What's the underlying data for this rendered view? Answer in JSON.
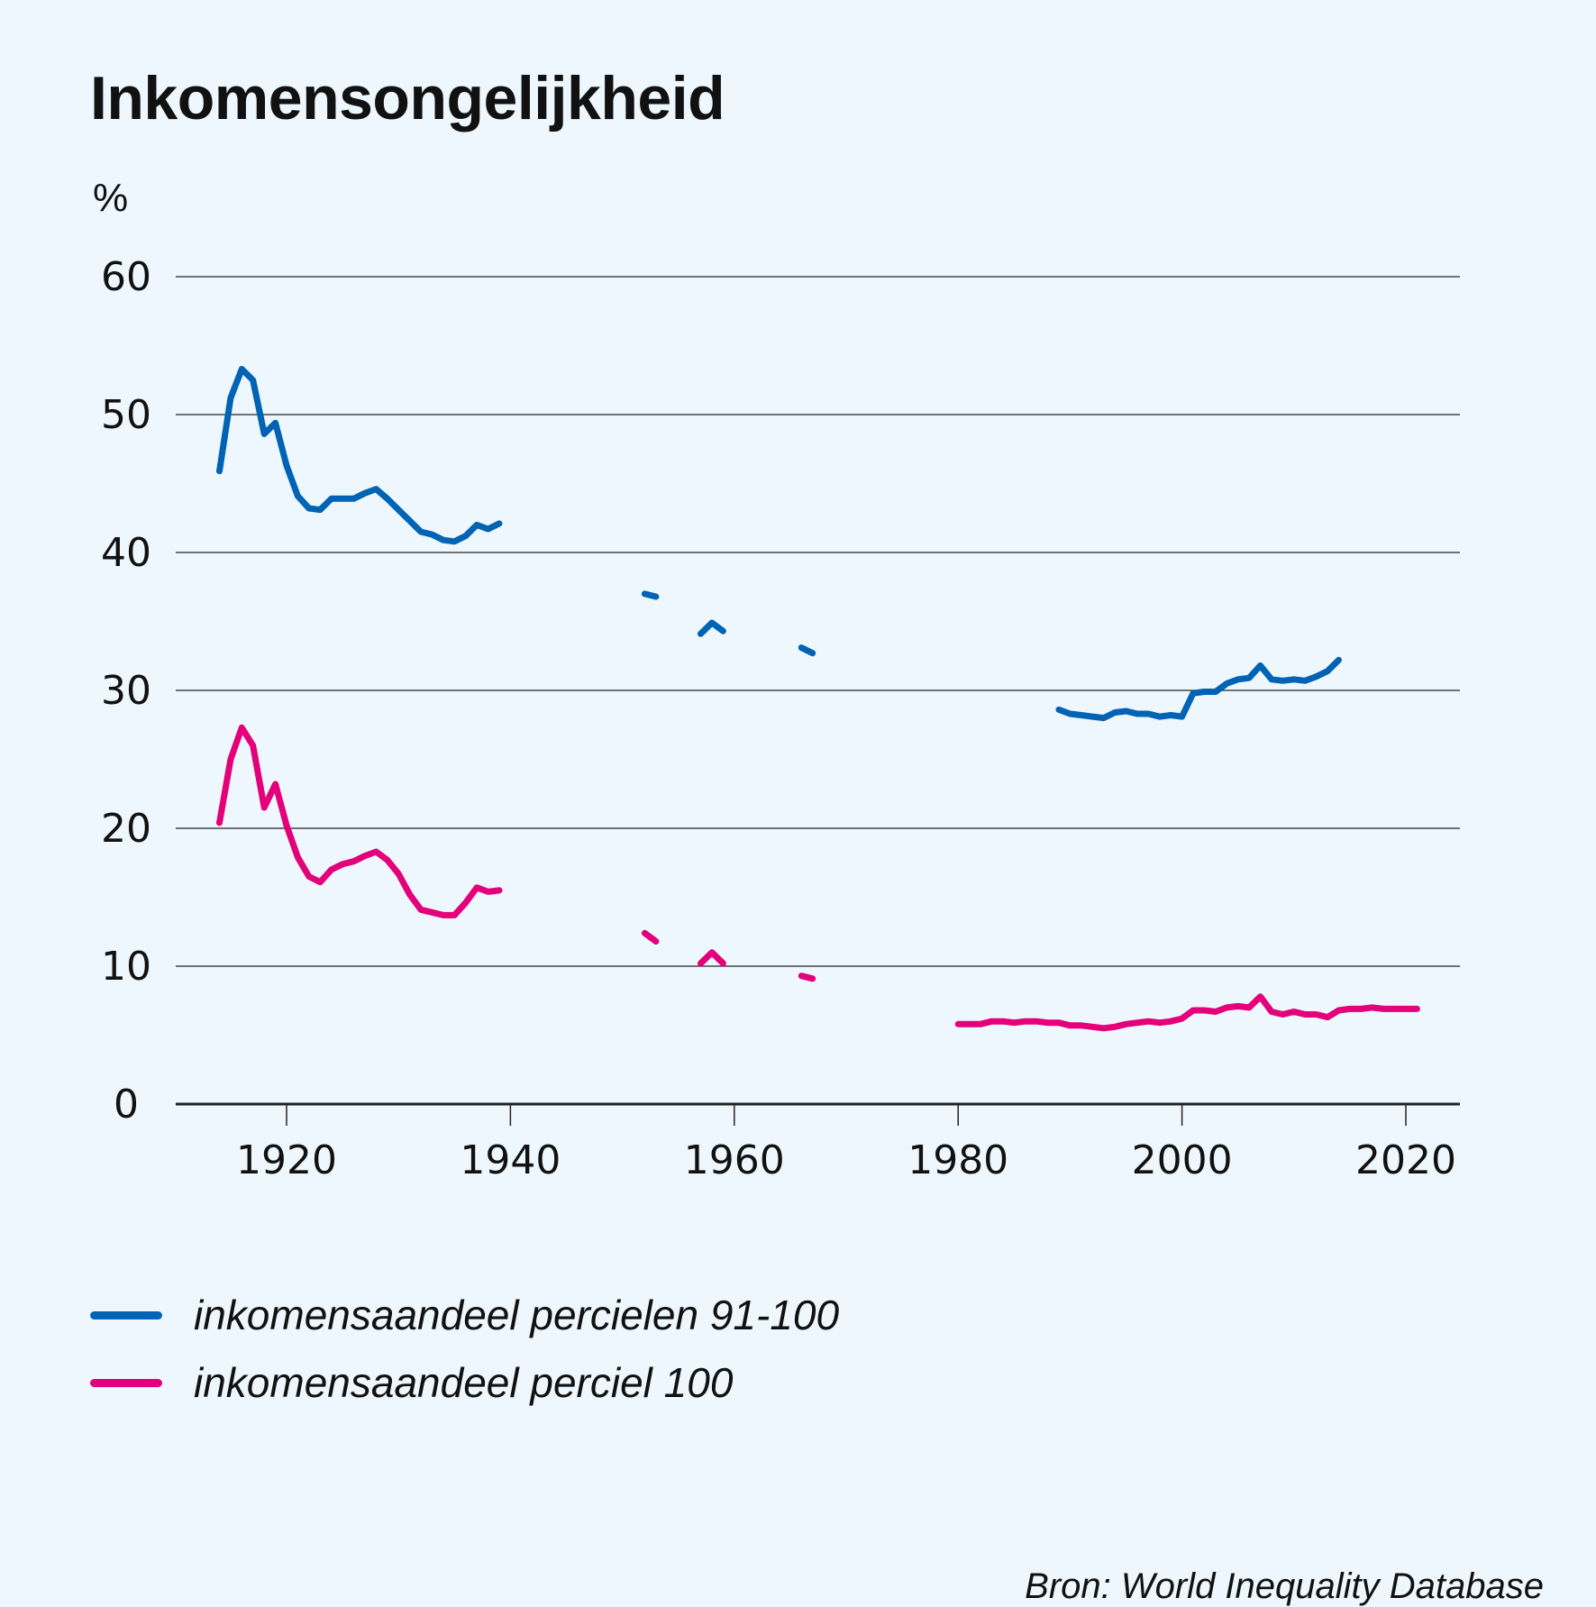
{
  "colors": {
    "background": "#eef7fd",
    "series_top10": "#0063b4",
    "series_top1": "#e3007a",
    "grid": "#222222"
  },
  "chart_data": {
    "type": "line",
    "title": "Inkomensongelijkheid",
    "ylabel": "%",
    "xlabel": "",
    "ylim": [
      0,
      60
    ],
    "xlim": [
      1910,
      2025
    ],
    "yticks": [
      0,
      10,
      20,
      30,
      40,
      50,
      60
    ],
    "xticks": [
      1920,
      1940,
      1960,
      1980,
      2000,
      2020
    ],
    "grid": true,
    "legend_position": "bottom-left",
    "source": "Bron: World Inequality Database",
    "series": [
      {
        "name": "inkomensaandeel percielen 91-100",
        "color": "#0063b4",
        "segments": [
          [
            [
              1914,
              45.9
            ],
            [
              1915,
              51.2
            ],
            [
              1916,
              53.3
            ],
            [
              1917,
              52.5
            ],
            [
              1918,
              48.6
            ],
            [
              1919,
              49.4
            ],
            [
              1920,
              46.3
            ],
            [
              1921,
              44.1
            ],
            [
              1922,
              43.2
            ],
            [
              1923,
              43.1
            ],
            [
              1924,
              43.9
            ],
            [
              1925,
              43.9
            ],
            [
              1926,
              43.9
            ],
            [
              1927,
              44.3
            ],
            [
              1928,
              44.6
            ],
            [
              1929,
              43.9
            ],
            [
              1930,
              43.1
            ],
            [
              1931,
              42.3
            ],
            [
              1932,
              41.5
            ],
            [
              1933,
              41.3
            ],
            [
              1934,
              40.9
            ],
            [
              1935,
              40.8
            ],
            [
              1936,
              41.2
            ],
            [
              1937,
              42.0
            ],
            [
              1938,
              41.7
            ],
            [
              1939,
              42.1
            ]
          ],
          [
            [
              1952,
              37.0
            ],
            [
              1953,
              36.8
            ]
          ],
          [
            [
              1957,
              34.1
            ],
            [
              1958,
              34.9
            ],
            [
              1959,
              34.3
            ]
          ],
          [
            [
              1966,
              33.1
            ],
            [
              1967,
              32.7
            ]
          ],
          [
            [
              1989,
              28.6
            ],
            [
              1990,
              28.3
            ],
            [
              1991,
              28.2
            ],
            [
              1992,
              28.1
            ],
            [
              1993,
              28.0
            ],
            [
              1994,
              28.4
            ],
            [
              1995,
              28.5
            ],
            [
              1996,
              28.3
            ],
            [
              1997,
              28.3
            ],
            [
              1998,
              28.1
            ],
            [
              1999,
              28.2
            ],
            [
              2000,
              28.1
            ],
            [
              2001,
              29.8
            ],
            [
              2002,
              29.9
            ],
            [
              2003,
              29.9
            ],
            [
              2004,
              30.5
            ],
            [
              2005,
              30.8
            ],
            [
              2006,
              30.9
            ],
            [
              2007,
              31.8
            ],
            [
              2008,
              30.8
            ],
            [
              2009,
              30.7
            ],
            [
              2010,
              30.8
            ],
            [
              2011,
              30.7
            ],
            [
              2012,
              31.0
            ],
            [
              2013,
              31.4
            ],
            [
              2014,
              32.2
            ]
          ]
        ]
      },
      {
        "name": "inkomensaandeel perciel 100",
        "color": "#e3007a",
        "segments": [
          [
            [
              1914,
              20.4
            ],
            [
              1915,
              25.0
            ],
            [
              1916,
              27.3
            ],
            [
              1917,
              26.0
            ],
            [
              1918,
              21.5
            ],
            [
              1919,
              23.2
            ],
            [
              1920,
              20.2
            ],
            [
              1921,
              17.9
            ],
            [
              1922,
              16.5
            ],
            [
              1923,
              16.1
            ],
            [
              1924,
              17.0
            ],
            [
              1925,
              17.4
            ],
            [
              1926,
              17.6
            ],
            [
              1927,
              18.0
            ],
            [
              1928,
              18.3
            ],
            [
              1929,
              17.7
            ],
            [
              1930,
              16.7
            ],
            [
              1931,
              15.2
            ],
            [
              1932,
              14.1
            ],
            [
              1933,
              13.9
            ],
            [
              1934,
              13.7
            ],
            [
              1935,
              13.7
            ],
            [
              1936,
              14.6
            ],
            [
              1937,
              15.7
            ],
            [
              1938,
              15.4
            ],
            [
              1939,
              15.5
            ]
          ],
          [
            [
              1952,
              12.4
            ],
            [
              1953,
              11.8
            ]
          ],
          [
            [
              1957,
              10.2
            ],
            [
              1958,
              11.0
            ],
            [
              1959,
              10.2
            ]
          ],
          [
            [
              1966,
              9.3
            ],
            [
              1967,
              9.1
            ]
          ],
          [
            [
              1980,
              5.8
            ],
            [
              1981,
              5.8
            ],
            [
              1982,
              5.8
            ],
            [
              1983,
              6.0
            ],
            [
              1984,
              6.0
            ],
            [
              1985,
              5.9
            ],
            [
              1986,
              6.0
            ],
            [
              1987,
              6.0
            ],
            [
              1988,
              5.9
            ],
            [
              1989,
              5.9
            ],
            [
              1990,
              5.7
            ],
            [
              1991,
              5.7
            ],
            [
              1992,
              5.6
            ],
            [
              1993,
              5.5
            ],
            [
              1994,
              5.6
            ],
            [
              1995,
              5.8
            ],
            [
              1996,
              5.9
            ],
            [
              1997,
              6.0
            ],
            [
              1998,
              5.9
            ],
            [
              1999,
              6.0
            ],
            [
              2000,
              6.2
            ],
            [
              2001,
              6.8
            ],
            [
              2002,
              6.8
            ],
            [
              2003,
              6.7
            ],
            [
              2004,
              7.0
            ],
            [
              2005,
              7.1
            ],
            [
              2006,
              7.0
            ],
            [
              2007,
              7.8
            ],
            [
              2008,
              6.7
            ],
            [
              2009,
              6.5
            ],
            [
              2010,
              6.7
            ],
            [
              2011,
              6.5
            ],
            [
              2012,
              6.5
            ],
            [
              2013,
              6.3
            ],
            [
              2014,
              6.8
            ],
            [
              2015,
              6.9
            ],
            [
              2016,
              6.9
            ],
            [
              2017,
              7.0
            ],
            [
              2018,
              6.9
            ],
            [
              2019,
              6.9
            ],
            [
              2020,
              6.9
            ],
            [
              2021,
              6.9
            ]
          ]
        ]
      }
    ]
  }
}
